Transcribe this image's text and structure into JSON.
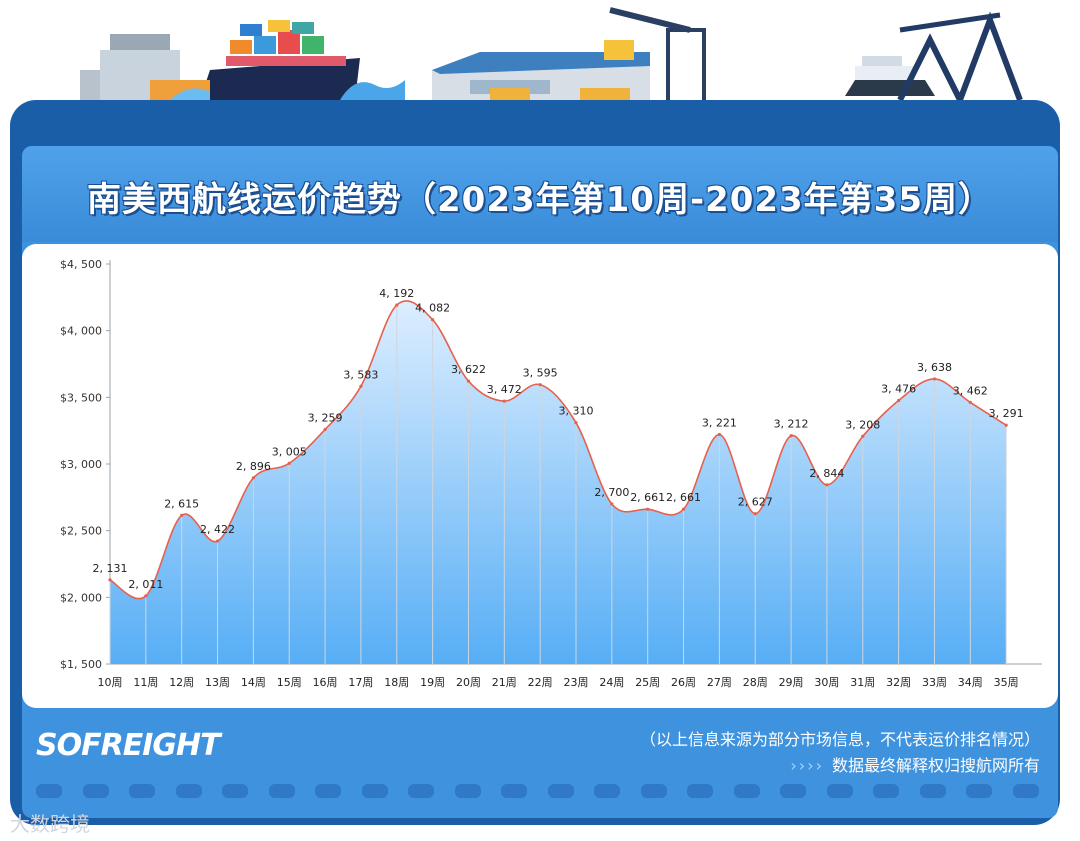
{
  "title": "南美西航线运价趋势（2023年第10周-2023年第35周）",
  "brand": "SOFREIGHT",
  "footer": {
    "note": "（以上信息来源为部分市场信息，不代表运价排名情况）",
    "chevrons": "››››",
    "rights": "数据最终解释权归搜航网所有"
  },
  "source_mark": "大数跨境",
  "colors": {
    "frame": "#1b5ea8",
    "panel": "#3f93de",
    "line": "#e8604c",
    "area_top": "#ddeeff",
    "area_bottom": "#57aef5"
  },
  "chart_data": {
    "type": "area",
    "title": "南美西航线运价趋势（2023年第10周-2023年第35周）",
    "categories": [
      "10周",
      "11周",
      "12周",
      "13周",
      "14周",
      "15周",
      "16周",
      "17周",
      "18周",
      "19周",
      "20周",
      "21周",
      "22周",
      "23周",
      "24周",
      "25周",
      "26周",
      "27周",
      "28周",
      "29周",
      "30周",
      "31周",
      "32周",
      "33周",
      "34周",
      "35周"
    ],
    "values": [
      2131,
      2011,
      2615,
      2422,
      2896,
      3005,
      3259,
      3583,
      4192,
      4082,
      3622,
      3472,
      3595,
      3310,
      2700,
      2661,
      2661,
      3221,
      2627,
      3212,
      2844,
      3208,
      3476,
      3638,
      3462,
      3291
    ],
    "value_labels": [
      "2, 131",
      "2, 011",
      "2, 615",
      "2, 422",
      "2, 896",
      "3, 005",
      "3, 259",
      "3, 583",
      "4, 192",
      "4, 082",
      "3, 622",
      "3, 472",
      "3, 595",
      "3, 310",
      "2, 700",
      "2, 661",
      "2, 661",
      "3, 221",
      "2, 627",
      "3, 212",
      "2, 844",
      "3, 208",
      "3, 476",
      "3, 638",
      "3, 462",
      "3, 291"
    ],
    "yticks": [
      "$1, 500",
      "$2, 000",
      "$2, 500",
      "$3, 000",
      "$3, 500",
      "$4, 000",
      "$4, 500"
    ],
    "ytick_values": [
      1500,
      2000,
      2500,
      3000,
      3500,
      4000,
      4500
    ],
    "ylim": [
      1500,
      4500
    ],
    "xlabel": "",
    "ylabel": "",
    "grid": "vertical"
  }
}
